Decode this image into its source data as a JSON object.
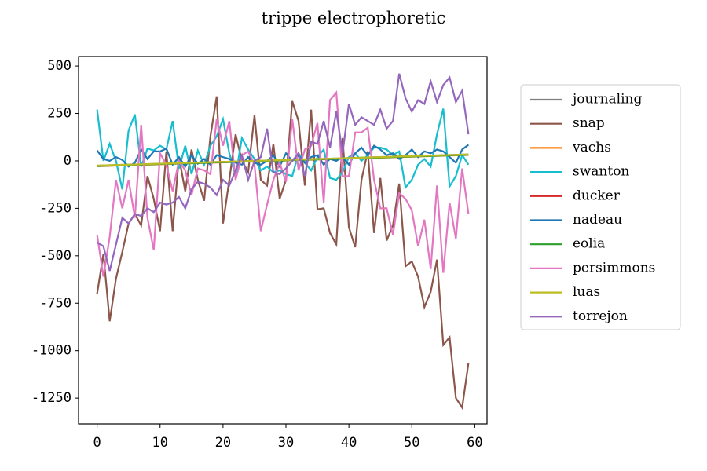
{
  "chart_data": {
    "type": "line",
    "title": "trippe electrophoretic",
    "x": [
      0,
      1,
      2,
      3,
      4,
      5,
      6,
      7,
      8,
      9,
      10,
      11,
      12,
      13,
      14,
      15,
      16,
      17,
      18,
      19,
      20,
      21,
      22,
      23,
      24,
      25,
      26,
      27,
      28,
      29,
      30,
      31,
      32,
      33,
      34,
      35,
      36,
      37,
      38,
      39,
      40,
      41,
      42,
      43,
      44,
      45,
      46,
      47,
      48,
      49,
      50,
      51,
      52,
      53,
      54,
      55,
      56,
      57,
      58,
      59
    ],
    "xlim": [
      -2.95,
      61.95
    ],
    "xticks": [
      0,
      10,
      20,
      30,
      40,
      50,
      60
    ],
    "ylim": [
      -1386,
      550
    ],
    "yticks": [
      500,
      250,
      0,
      -250,
      -500,
      -750,
      -1000,
      -1250
    ],
    "legend": "outside-right",
    "series": [
      {
        "name": "journaling",
        "color": "#7f7f7f",
        "values": [
          -25,
          -24,
          -23,
          -22,
          -21,
          -20,
          -19,
          -18,
          -17,
          -16,
          -15,
          -14,
          -13,
          -12,
          -11,
          -10,
          -9,
          -8,
          -7,
          -6,
          -5,
          -4,
          -3,
          -2,
          -1,
          0,
          1,
          2,
          3,
          4,
          5,
          6,
          7,
          8,
          9,
          10,
          11,
          12,
          13,
          14,
          15,
          16,
          17,
          18,
          19,
          20,
          21,
          22,
          23,
          24,
          25,
          26,
          27,
          28,
          29,
          30,
          31,
          32,
          33,
          34
        ]
      },
      {
        "name": "snap",
        "color": "#8c564b",
        "values": [
          -700,
          -490,
          -845,
          -620,
          -480,
          -330,
          -280,
          -340,
          -80,
          -200,
          -370,
          50,
          -370,
          20,
          -160,
          60,
          -100,
          -210,
          130,
          340,
          -330,
          -100,
          140,
          0,
          -60,
          240,
          -100,
          -130,
          90,
          -200,
          -100,
          315,
          210,
          -130,
          270,
          -255,
          -250,
          -380,
          -440,
          120,
          -350,
          -455,
          -100,
          50,
          -380,
          -90,
          -420,
          -340,
          -120,
          -555,
          -530,
          -610,
          -770,
          -690,
          -520,
          -970,
          -930,
          -1250,
          -1300,
          -1065
        ]
      },
      {
        "name": "vachs",
        "color": "#ff7f0e",
        "values": [
          -28,
          -27,
          -26,
          -25,
          -24,
          -23,
          -22,
          -21,
          -20,
          -19,
          -18,
          -17,
          -16,
          -15,
          -14,
          -13,
          -12,
          -11,
          -10,
          -9,
          -8,
          -7,
          -6,
          -5,
          -4,
          -3,
          -2,
          -1,
          0,
          1,
          2,
          3,
          4,
          5,
          6,
          7,
          8,
          9,
          10,
          11,
          12,
          13,
          14,
          15,
          16,
          17,
          18,
          19,
          20,
          21,
          22,
          23,
          24,
          25,
          26,
          27,
          28,
          29,
          30,
          31
        ]
      },
      {
        "name": "swanton",
        "color": "#17becf",
        "values": [
          270,
          0,
          90,
          0,
          -150,
          160,
          245,
          -30,
          65,
          55,
          80,
          60,
          210,
          -40,
          80,
          -70,
          55,
          -20,
          80,
          130,
          220,
          40,
          -80,
          120,
          60,
          10,
          -50,
          -30,
          -60,
          -50,
          -70,
          -80,
          40,
          -10,
          -50,
          20,
          60,
          -90,
          -100,
          -60,
          20,
          40,
          0,
          30,
          70,
          70,
          60,
          30,
          50,
          -140,
          -100,
          -20,
          10,
          -30,
          140,
          275,
          -135,
          -80,
          30,
          -20
        ]
      },
      {
        "name": "ducker",
        "color": "#d62728",
        "values": [
          -26,
          -25,
          -24,
          -23,
          -22,
          -21,
          -20,
          -19,
          -18,
          -17,
          -16,
          -15,
          -14,
          -13,
          -12,
          -11,
          -10,
          -9,
          -8,
          -7,
          -6,
          -5,
          -4,
          -3,
          -2,
          -1,
          0,
          1,
          2,
          3,
          4,
          5,
          6,
          7,
          8,
          9,
          10,
          11,
          12,
          13,
          14,
          15,
          16,
          17,
          18,
          19,
          20,
          21,
          22,
          23,
          24,
          25,
          26,
          27,
          28,
          29,
          30,
          31,
          32,
          33
        ]
      },
      {
        "name": "nadeau",
        "color": "#1f77b4",
        "values": [
          55,
          10,
          0,
          20,
          5,
          -30,
          -10,
          60,
          10,
          50,
          50,
          65,
          -20,
          20,
          -30,
          30,
          -15,
          10,
          -20,
          30,
          20,
          10,
          -10,
          -20,
          20,
          -10,
          -20,
          0,
          30,
          -30,
          40,
          0,
          30,
          -10,
          20,
          30,
          -20,
          10,
          0,
          20,
          -20,
          40,
          70,
          30,
          80,
          60,
          30,
          40,
          10,
          30,
          60,
          20,
          50,
          40,
          60,
          50,
          20,
          -10,
          60,
          85
        ]
      },
      {
        "name": "eolia",
        "color": "#2ca02c",
        "values": [
          -27,
          -26,
          -25,
          -24,
          -23,
          -22,
          -21,
          -20,
          -19,
          -18,
          -17,
          -16,
          -15,
          -14,
          -13,
          -12,
          -11,
          -10,
          -9,
          -8,
          -7,
          -6,
          -5,
          -4,
          -3,
          -2,
          -1,
          0,
          1,
          2,
          3,
          4,
          5,
          6,
          7,
          8,
          9,
          10,
          11,
          12,
          13,
          14,
          15,
          16,
          17,
          18,
          19,
          20,
          21,
          22,
          23,
          24,
          25,
          26,
          27,
          28,
          29,
          30,
          31,
          32
        ]
      },
      {
        "name": "persimmons",
        "color": "#e377c2",
        "values": [
          -390,
          -610,
          -400,
          -100,
          -250,
          -100,
          -300,
          190,
          -300,
          -470,
          40,
          -20,
          -160,
          0,
          -50,
          -180,
          -40,
          -50,
          -70,
          220,
          80,
          210,
          -100,
          30,
          50,
          -20,
          -370,
          -230,
          -100,
          -10,
          -110,
          220,
          -50,
          60,
          80,
          200,
          -220,
          320,
          360,
          -80,
          -80,
          150,
          150,
          175,
          -100,
          -250,
          -250,
          -390,
          -170,
          -200,
          -260,
          -450,
          -310,
          -570,
          -130,
          -590,
          -220,
          -410,
          -40,
          -280
        ]
      },
      {
        "name": "luas",
        "color": "#bcbd22",
        "values": [
          -25,
          -24,
          -23,
          -22,
          -21,
          -20,
          -19,
          -18,
          -17,
          -16,
          -15,
          -14,
          -13,
          -12,
          -11,
          -10,
          -9,
          -8,
          -7,
          -6,
          -5,
          -4,
          -3,
          -2,
          -1,
          0,
          1,
          2,
          3,
          4,
          5,
          6,
          7,
          8,
          9,
          10,
          11,
          12,
          13,
          14,
          15,
          16,
          17,
          18,
          19,
          20,
          21,
          22,
          23,
          24,
          25,
          26,
          27,
          28,
          29,
          30,
          31,
          32,
          33,
          34
        ]
      },
      {
        "name": "torrejon",
        "color": "#9467bd",
        "values": [
          -430,
          -450,
          -580,
          -440,
          -300,
          -330,
          -280,
          -290,
          -250,
          -270,
          -220,
          -230,
          -220,
          -190,
          -250,
          -150,
          -110,
          -120,
          -140,
          -180,
          -100,
          -130,
          -50,
          30,
          -100,
          0,
          20,
          170,
          -60,
          -70,
          -40,
          0,
          40,
          -80,
          100,
          90,
          210,
          70,
          260,
          40,
          300,
          190,
          230,
          210,
          190,
          270,
          170,
          210,
          460,
          330,
          260,
          320,
          300,
          420,
          310,
          400,
          440,
          310,
          370,
          140
        ]
      }
    ]
  }
}
